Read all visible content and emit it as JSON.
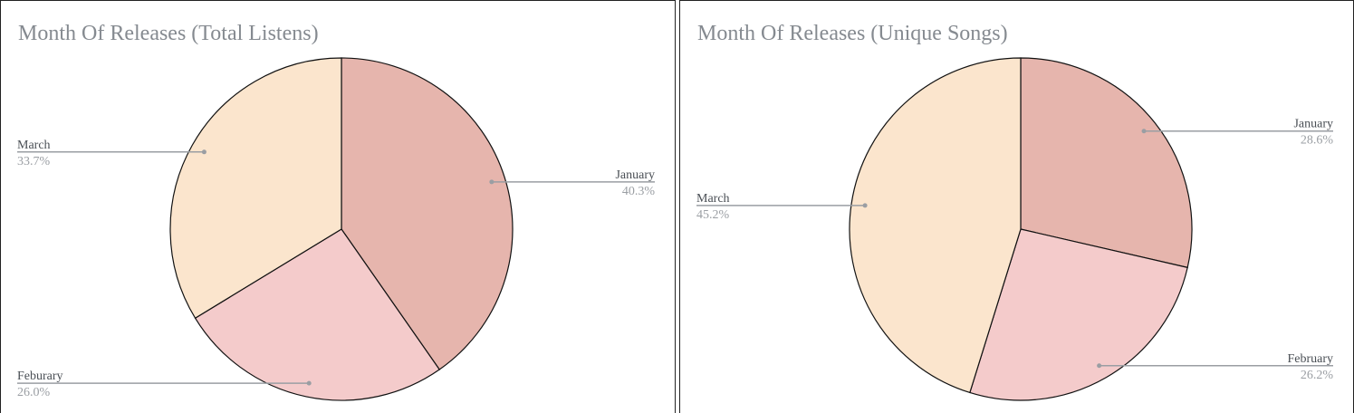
{
  "chart_data": [
    {
      "type": "pie",
      "title": "Month Of Releases (Total Listens)",
      "categories": [
        "January",
        "Feburary",
        "March"
      ],
      "values": [
        40.3,
        26.0,
        33.7
      ],
      "value_labels": [
        "40.3%",
        "26.0%",
        "33.7%"
      ],
      "colors": [
        "#e6b5ad",
        "#f4cbcb",
        "#fbe5cd"
      ]
    },
    {
      "type": "pie",
      "title": "Month Of Releases (Unique Songs)",
      "categories": [
        "January",
        "February",
        "March"
      ],
      "values": [
        28.6,
        26.2,
        45.2
      ],
      "value_labels": [
        "28.6%",
        "26.2%",
        "45.2%"
      ],
      "colors": [
        "#e6b5ad",
        "#f4cbcb",
        "#fbe5cd"
      ]
    }
  ]
}
